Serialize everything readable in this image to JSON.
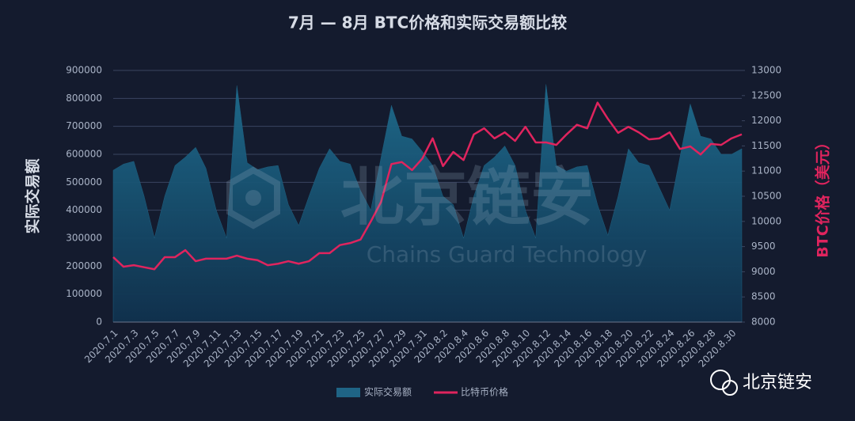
{
  "chart_data": {
    "type": "area_line",
    "title": "7月 — 8月 BTC价格和实际交易额比较",
    "y_label": "实际交易额",
    "y2_label": "BTC价格（美元）",
    "watermark": "北京链安",
    "watermark_subtitle": "Chains Guard Technology",
    "brand": "北京链安",
    "grid": true,
    "legend": "bottom",
    "categories": [
      "2020.7.1",
      null,
      "2020.7.3",
      null,
      "2020.7.5",
      null,
      "2020.7.7",
      null,
      "2020.7.9",
      null,
      "2020.7.11",
      null,
      "2020.7.13",
      null,
      "2020.7.15",
      null,
      "2020.7.17",
      null,
      "2020.7.19",
      null,
      "2020.7.21",
      null,
      "2020.7.23",
      null,
      "2020.7.25",
      null,
      "2020.7.27",
      null,
      "2020.7.29",
      null,
      "2020.7.31",
      null,
      "2020.8.2",
      null,
      "2020.8.4",
      null,
      "2020.8.6",
      null,
      "2020.8.8",
      null,
      "2020.8.10",
      null,
      "2020.8.12",
      null,
      "2020.8.14",
      null,
      "2020.8.16",
      null,
      "2020.8.18",
      null,
      "2020.8.20",
      null,
      "2020.8.22",
      null,
      "2020.8.24",
      null,
      "2020.8.26",
      null,
      "2020.8.28",
      null,
      "2020.8.30",
      null
    ],
    "ylim": [
      0,
      900000
    ],
    "yticks": [
      0,
      100000,
      200000,
      300000,
      400000,
      500000,
      600000,
      700000,
      800000,
      900000
    ],
    "y2lim": [
      8000,
      13000
    ],
    "y2ticks": [
      8000,
      8500,
      9000,
      9500,
      10000,
      10500,
      11000,
      11500,
      12000,
      12500,
      13000
    ],
    "series": [
      {
        "name": "实际交易额",
        "type": "area",
        "color": "#1f6485",
        "values": [
          543000,
          565000,
          575000,
          450000,
          300000,
          450000,
          560000,
          590000,
          625000,
          550000,
          400000,
          300000,
          846000,
          570000,
          545000,
          555000,
          560000,
          420000,
          345000,
          450000,
          550000,
          620000,
          575000,
          565000,
          470000,
          400000,
          590000,
          775000,
          665000,
          655000,
          610000,
          560000,
          450000,
          420000,
          300000,
          450000,
          560000,
          590000,
          630000,
          560000,
          400000,
          300000,
          850000,
          560000,
          540000,
          555000,
          560000,
          420000,
          310000,
          450000,
          620000,
          570000,
          560000,
          480000,
          400000,
          590000,
          780000,
          665000,
          655000,
          600000,
          600000,
          620000
        ]
      },
      {
        "name": "比特币价格",
        "type": "line",
        "axis": "y2",
        "color": "#e0245e",
        "values": [
          9290,
          9100,
          9130,
          9090,
          9050,
          9290,
          9290,
          9430,
          9210,
          9260,
          9260,
          9260,
          9320,
          9260,
          9230,
          9130,
          9160,
          9210,
          9160,
          9210,
          9370,
          9370,
          9530,
          9570,
          9640,
          10000,
          10390,
          11140,
          11180,
          11020,
          11250,
          11650,
          11100,
          11380,
          11220,
          11730,
          11850,
          11650,
          11770,
          11600,
          11880,
          11570,
          11570,
          11520,
          11730,
          11920,
          11850,
          12360,
          12040,
          11760,
          11880,
          11770,
          11630,
          11650,
          11770,
          11440,
          11490,
          11330,
          11540,
          11520,
          11650,
          11730
        ]
      }
    ]
  }
}
